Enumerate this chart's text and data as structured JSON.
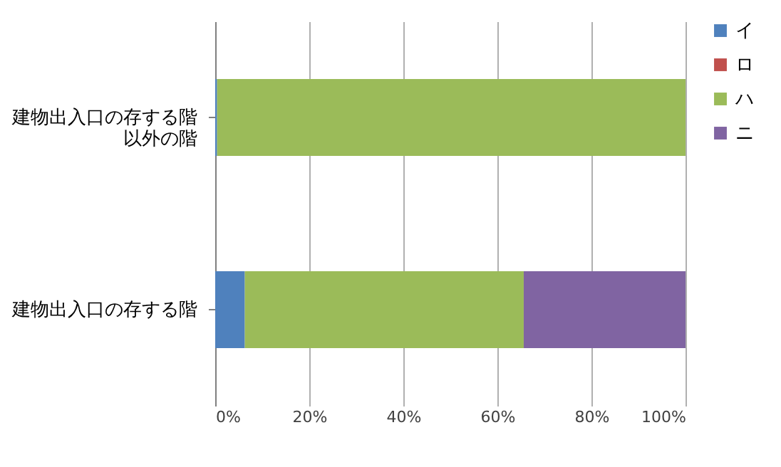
{
  "chart_data": {
    "type": "bar",
    "orientation": "horizontal",
    "stacked": true,
    "categories": [
      "建物出入口の存する階以外の階",
      "建物出入口の存する階"
    ],
    "series": [
      {
        "name": "イ",
        "color": "#4f81bd",
        "values": [
          0.4,
          6.3
        ]
      },
      {
        "name": "ロ",
        "color": "#c0504d",
        "values": [
          0,
          0
        ]
      },
      {
        "name": "ハ",
        "color": "#9bbb59",
        "values": [
          99.6,
          59.3
        ]
      },
      {
        "name": "ニ",
        "color": "#8064a2",
        "values": [
          0,
          34.4
        ]
      }
    ],
    "xlim": [
      0,
      100
    ],
    "xticks": [
      {
        "value": 0,
        "label": "0%"
      },
      {
        "value": 20,
        "label": "20%"
      },
      {
        "value": 40,
        "label": "40%"
      },
      {
        "value": 60,
        "label": "60%"
      },
      {
        "value": 80,
        "label": "80%"
      },
      {
        "value": 100,
        "label": "100%"
      }
    ],
    "grid": "x",
    "legend": "right"
  }
}
